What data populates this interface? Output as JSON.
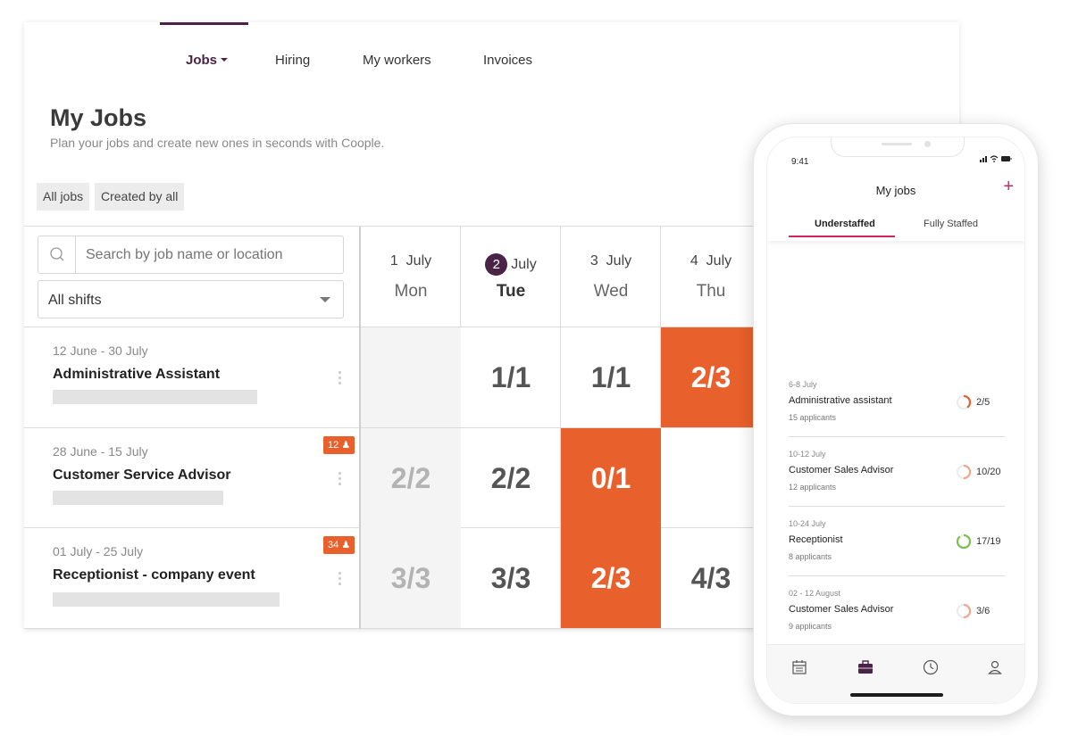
{
  "nav": {
    "items": [
      {
        "label": "Jobs"
      },
      {
        "label": "Hiring"
      },
      {
        "label": "My workers"
      },
      {
        "label": "Invoices"
      }
    ]
  },
  "page": {
    "title": "My Jobs",
    "subtitle": "Plan your jobs and create new ones in seconds with Coople."
  },
  "filters": {
    "all_jobs": "All jobs",
    "created_by": "Created by all"
  },
  "search": {
    "placeholder": "Search by job name or location"
  },
  "shift_select": {
    "value": "All shifts"
  },
  "days": [
    {
      "num": "1",
      "month": "July",
      "name": "Mon"
    },
    {
      "num": "2",
      "month": "July",
      "name": "Tue"
    },
    {
      "num": "3",
      "month": "July",
      "name": "Wed"
    },
    {
      "num": "4",
      "month": "July",
      "name": "Thu"
    }
  ],
  "jobs": [
    {
      "dates": "12 June - 30 July",
      "title": "Administrative Assistant",
      "badge": "",
      "cells": [
        "",
        "1/1",
        "1/1",
        "2/3"
      ]
    },
    {
      "dates": "28 June - 15 July",
      "title": "Customer Service Advisor",
      "badge": "12",
      "cells": [
        "2/2",
        "2/2",
        "0/1",
        ""
      ]
    },
    {
      "dates": "01 July - 25 July",
      "title": "Receptionist - company event",
      "badge": "34",
      "cells": [
        "3/3",
        "3/3",
        "2/3",
        "4/3"
      ]
    }
  ],
  "colors": {
    "brand": "#4a2347",
    "alert": "#e8602c",
    "accent": "#d3245d",
    "ok": "#7dbf4e"
  },
  "phone": {
    "time": "9:41",
    "title": "My jobs",
    "add_icon": "plus-icon",
    "tabs": [
      "Understaffed",
      "Fully Staffed"
    ],
    "jobs": [
      {
        "dates": "6-8 July",
        "title": "Administrative assistant",
        "applicants": "15 applicants",
        "count": "2/5",
        "fill": 0.4,
        "color": "#e8602c"
      },
      {
        "dates": "10-12 July",
        "title": "Customer Sales Advisor",
        "applicants": "12 applicants",
        "count": "10/20",
        "fill": 0.5,
        "color": "#f2a58a"
      },
      {
        "dates": "10-24 July",
        "title": "Receptionist",
        "applicants": "8 applicants",
        "count": "17/19",
        "fill": 0.89,
        "color": "#7dbf4e"
      },
      {
        "dates": "02 - 12 August",
        "title": "Customer Sales Advisor",
        "applicants": "9 applicants",
        "count": "3/6",
        "fill": 0.5,
        "color": "#f2a58a"
      }
    ],
    "bottom_nav": [
      "calendar-icon",
      "briefcase-icon",
      "clock-icon",
      "user-icon"
    ]
  }
}
